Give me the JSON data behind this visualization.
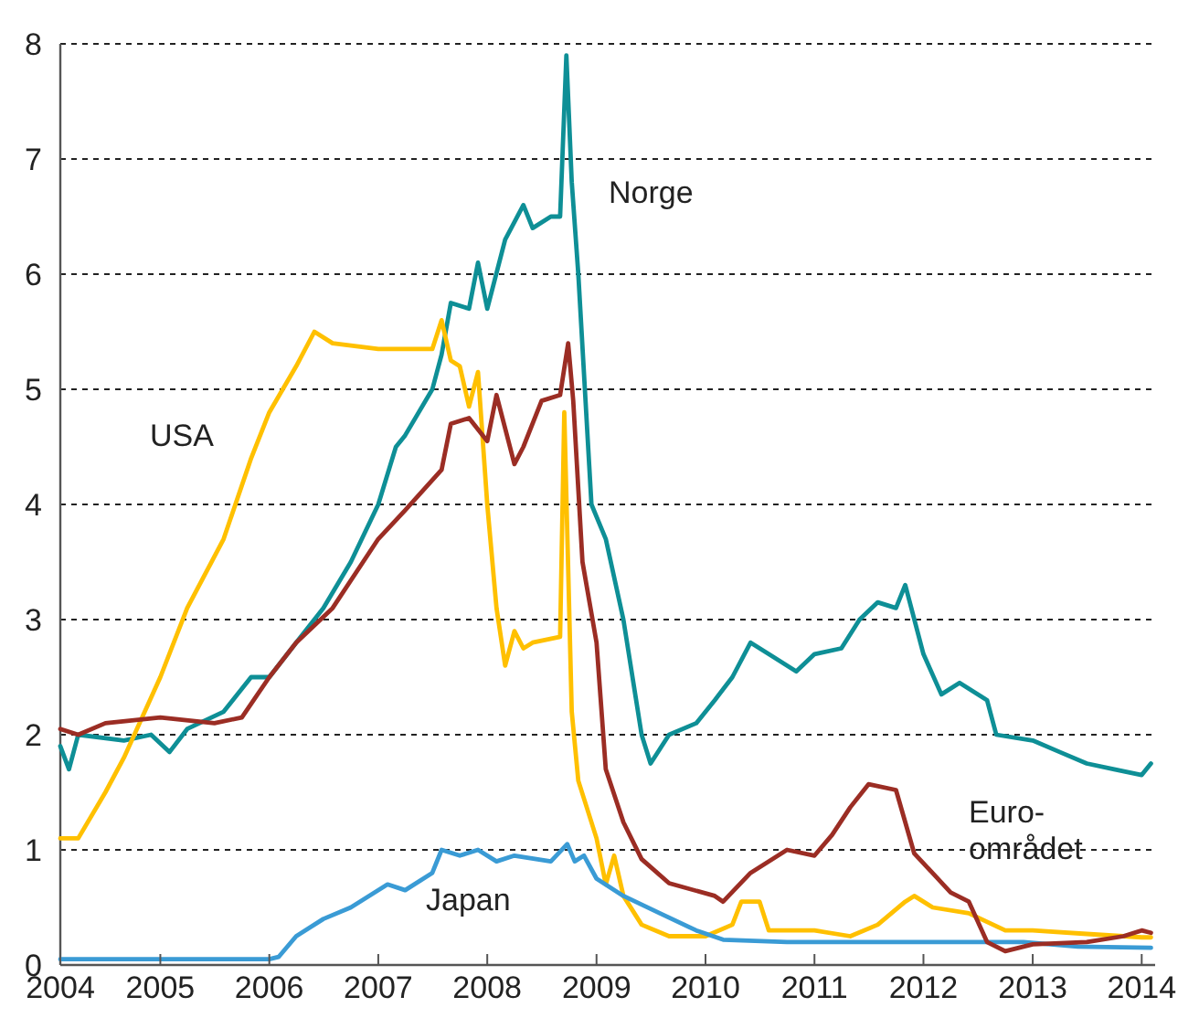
{
  "chart_data": {
    "type": "line",
    "xlim": [
      "2004-02-01",
      "2014-02-15"
    ],
    "xticks": [
      {
        "value": "2004-02-01",
        "label": "2004"
      },
      "2005",
      "2006",
      "2007",
      "2008",
      "2009",
      "2010",
      "2011",
      "2012",
      "2013",
      "2014"
    ],
    "ylim": [
      0,
      8
    ],
    "yticks": [
      0,
      1,
      2,
      3,
      4,
      5,
      6,
      7,
      8
    ],
    "grid": "y",
    "line_style": "solid",
    "marker": "none",
    "series": [
      {
        "name": "Norge",
        "color": "#0e8f96",
        "x": [
          "2004-02",
          "2004-03",
          "2004-04",
          "2004-09",
          "2004-12",
          "2005-02",
          "2005-04",
          "2005-08",
          "2005-11",
          "2006-01",
          "2006-04",
          "2006-07",
          "2006-10",
          "2007-01",
          "2007-03",
          "2007-04",
          "2007-07",
          "2007-08",
          "2007-09",
          "2007-11",
          "2007-12",
          "2008-01",
          "2008-03",
          "2008-05",
          "2008-06",
          "2008-08",
          "2008-09-01",
          "2008-09-22",
          "2008-10-10",
          "2008-11-01",
          "2008-12-15",
          "2009-02",
          "2009-04",
          "2009-06",
          "2009-07",
          "2009-09",
          "2009-12",
          "2010-02",
          "2010-04",
          "2010-06",
          "2010-08",
          "2010-11",
          "2011-01",
          "2011-04",
          "2011-06",
          "2011-08",
          "2011-10",
          "2011-11",
          "2012-01",
          "2012-03",
          "2012-05",
          "2012-08",
          "2012-09",
          "2013-01",
          "2013-04",
          "2013-07",
          "2013-10",
          "2014-01",
          "2014-02"
        ],
        "values": [
          1.9,
          1.7,
          2.0,
          1.95,
          2.0,
          1.85,
          2.05,
          2.2,
          2.5,
          2.5,
          2.8,
          3.1,
          3.5,
          4.0,
          4.5,
          4.6,
          5.0,
          5.3,
          5.75,
          5.7,
          6.1,
          5.7,
          6.3,
          6.6,
          6.4,
          6.5,
          6.5,
          7.9,
          6.8,
          6.0,
          4.0,
          3.7,
          3.0,
          2.0,
          1.75,
          2.0,
          2.1,
          2.3,
          2.5,
          2.8,
          2.7,
          2.55,
          2.7,
          2.75,
          3.0,
          3.15,
          3.1,
          3.3,
          2.7,
          2.35,
          2.45,
          2.3,
          2.0,
          1.95,
          1.85,
          1.75,
          1.7,
          1.65,
          1.75
        ]
      },
      {
        "name": "USA",
        "color": "#ffc000",
        "x": [
          "2004-02",
          "2004-04",
          "2004-07",
          "2004-09",
          "2005-01",
          "2005-04",
          "2005-08",
          "2005-11",
          "2006-01",
          "2006-04",
          "2006-06",
          "2006-08",
          "2007-01",
          "2007-07",
          "2007-08",
          "2007-09",
          "2007-10",
          "2007-11",
          "2007-12",
          "2008-01",
          "2008-02",
          "2008-03",
          "2008-04",
          "2008-05",
          "2008-06",
          "2008-09-01",
          "2008-09-15",
          "2008-10-10",
          "2008-11",
          "2009-01",
          "2009-02",
          "2009-03",
          "2009-04",
          "2009-06",
          "2009-09",
          "2010-01",
          "2010-04",
          "2010-05",
          "2010-07",
          "2010-08",
          "2011-01",
          "2011-05",
          "2011-08",
          "2011-11",
          "2011-12",
          "2012-02",
          "2012-06",
          "2012-10",
          "2013-01",
          "2013-07",
          "2014-01",
          "2014-02"
        ],
        "values": [
          1.1,
          1.1,
          1.5,
          1.8,
          2.5,
          3.1,
          3.7,
          4.4,
          4.8,
          5.2,
          5.5,
          5.4,
          5.35,
          5.35,
          5.6,
          5.25,
          5.2,
          4.85,
          5.15,
          4.0,
          3.1,
          2.6,
          2.9,
          2.75,
          2.8,
          2.85,
          4.8,
          2.2,
          1.6,
          1.1,
          0.7,
          0.95,
          0.6,
          0.35,
          0.25,
          0.25,
          0.35,
          0.55,
          0.55,
          0.3,
          0.3,
          0.25,
          0.35,
          0.55,
          0.6,
          0.5,
          0.45,
          0.3,
          0.3,
          0.27,
          0.24,
          0.24
        ]
      },
      {
        "name": "Japan",
        "color": "#3a9bd5",
        "x": [
          "2004-02",
          "2006-01",
          "2006-02",
          "2006-04",
          "2006-07",
          "2006-10",
          "2007-02",
          "2007-04",
          "2007-07",
          "2007-08",
          "2007-10",
          "2007-12",
          "2008-02",
          "2008-04",
          "2008-08",
          "2008-09-25",
          "2008-10-20",
          "2008-11-20",
          "2009-01",
          "2009-04",
          "2009-08",
          "2009-12",
          "2010-03",
          "2010-10",
          "2012-01",
          "2012-12",
          "2013-06",
          "2014-02"
        ],
        "values": [
          0.05,
          0.05,
          0.07,
          0.25,
          0.4,
          0.5,
          0.7,
          0.65,
          0.8,
          1.0,
          0.95,
          1.0,
          0.9,
          0.95,
          0.9,
          1.05,
          0.9,
          0.95,
          0.75,
          0.6,
          0.45,
          0.3,
          0.22,
          0.2,
          0.2,
          0.2,
          0.16,
          0.15
        ]
      },
      {
        "name": "Euro-området",
        "color": "#9b2d24",
        "x": [
          "2004-02",
          "2004-04",
          "2004-07",
          "2005-01",
          "2005-07",
          "2005-10",
          "2006-01",
          "2006-04",
          "2006-08",
          "2007-01",
          "2007-04",
          "2007-08",
          "2007-09",
          "2007-11",
          "2008-01",
          "2008-02",
          "2008-04",
          "2008-05",
          "2008-07",
          "2008-09",
          "2008-09-28",
          "2008-10-15",
          "2008-11-15",
          "2009-01",
          "2009-02",
          "2009-04",
          "2009-06",
          "2009-09",
          "2010-02",
          "2010-03",
          "2010-06",
          "2010-10",
          "2011-01",
          "2011-03",
          "2011-05",
          "2011-07",
          "2011-10",
          "2011-12",
          "2012-04",
          "2012-06",
          "2012-08",
          "2012-10",
          "2013-01",
          "2013-07",
          "2013-11",
          "2014-01",
          "2014-02"
        ],
        "values": [
          2.05,
          2.0,
          2.1,
          2.15,
          2.1,
          2.15,
          2.5,
          2.8,
          3.1,
          3.7,
          3.95,
          4.3,
          4.7,
          4.75,
          4.55,
          4.95,
          4.35,
          4.5,
          4.9,
          4.95,
          5.4,
          4.9,
          3.5,
          2.8,
          1.7,
          1.24,
          0.92,
          0.71,
          0.6,
          0.55,
          0.8,
          1.0,
          0.95,
          1.13,
          1.37,
          1.57,
          1.52,
          0.97,
          0.63,
          0.55,
          0.2,
          0.12,
          0.18,
          0.2,
          0.25,
          0.3,
          0.28
        ]
      }
    ]
  }
}
